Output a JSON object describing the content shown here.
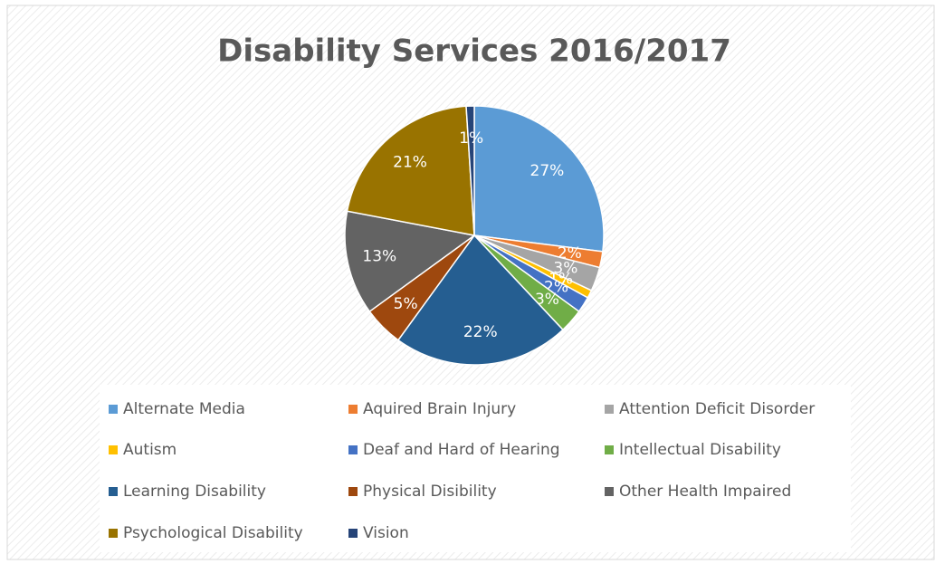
{
  "chart_data": {
    "type": "pie",
    "title": "Disability Services 2016/2017",
    "categories": [
      "Alternate Media",
      "Aquired Brain Injury",
      "Attention Deficit Disorder",
      "Autism",
      "Deaf and Hard of Hearing",
      "Intellectual Disability",
      "Learning Disability",
      "Physical Disibility",
      "Other Health Impaired",
      "Psychological Disability",
      "Vision"
    ],
    "values": [
      27,
      2,
      3,
      1,
      2,
      3,
      22,
      5,
      13,
      21,
      1
    ],
    "value_labels": [
      "27%",
      "2%",
      "3%",
      "1%",
      "2%",
      "3%",
      "22%",
      "5%",
      "13%",
      "21%",
      "1%"
    ],
    "colors": [
      "#5b9bd5",
      "#ed7d31",
      "#a5a5a5",
      "#ffc000",
      "#4472c4",
      "#70ad47",
      "#255e91",
      "#9e480e",
      "#636363",
      "#997300",
      "#264478"
    ],
    "legend": "bottom"
  }
}
